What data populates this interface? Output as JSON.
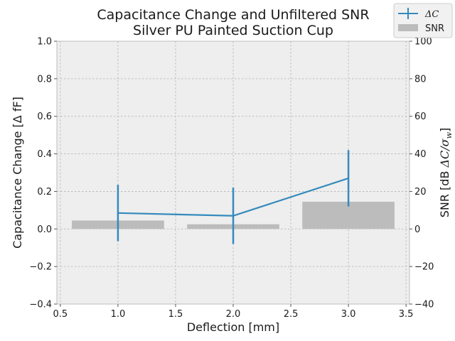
{
  "chart_data": {
    "type": "bar+line",
    "title": "Capacitance Change and Unfiltered SNR",
    "subtitle": "Silver PU Painted Suction Cup",
    "xlabel": "Deflection [mm]",
    "ylabel_left": "Capacitance Change [Δ fF]",
    "ylabel_right_prefix": "SNR [dB ",
    "ylabel_right_math": "ΔC/σ",
    "ylabel_right_math_sub": "w",
    "ylabel_right_suffix": "]",
    "xlim": [
      0.47,
      3.53
    ],
    "ylim_left": [
      -0.4,
      1.0
    ],
    "ylim_right": [
      -40,
      100
    ],
    "xticks": [
      0.5,
      1.0,
      1.5,
      2.0,
      2.5,
      3.0,
      3.5
    ],
    "xtick_labels": [
      "0.5",
      "1.0",
      "1.5",
      "2.0",
      "2.5",
      "3.0",
      "3.5"
    ],
    "yticks_left": [
      -0.4,
      -0.2,
      0.0,
      0.2,
      0.4,
      0.6,
      0.8,
      1.0
    ],
    "ytick_labels_left": [
      "−0.4",
      "−0.2",
      "0.0",
      "0.2",
      "0.4",
      "0.6",
      "0.8",
      "1.0"
    ],
    "yticks_right": [
      -40,
      -20,
      0,
      20,
      40,
      60,
      80,
      100
    ],
    "ytick_labels_right": [
      "−40",
      "−20",
      "0",
      "20",
      "40",
      "60",
      "80",
      "100"
    ],
    "grid": true,
    "legend_placement": "top-right",
    "line_series": {
      "name": "ΔC",
      "color": "#348abd",
      "x": [
        1.0,
        2.0,
        3.0
      ],
      "y": [
        0.085,
        0.07,
        0.27
      ],
      "yerr": [
        0.15,
        0.15,
        0.15
      ]
    },
    "bar_series": {
      "name": "SNR",
      "color": "#bcbcbc",
      "x": [
        1.0,
        2.0,
        3.0
      ],
      "width": 0.8,
      "values": [
        4.5,
        2.5,
        14.5
      ]
    }
  }
}
